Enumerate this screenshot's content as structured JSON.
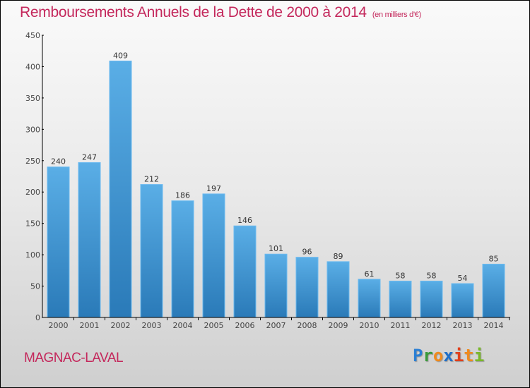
{
  "chart_data": {
    "type": "bar",
    "title": "Remboursements Annuels de la Dette de 2000 à 2014",
    "subtitle": "(en milliers d'€)",
    "xlabel": "",
    "ylabel": "",
    "categories": [
      "2000",
      "2001",
      "2002",
      "2003",
      "2004",
      "2005",
      "2006",
      "2007",
      "2008",
      "2009",
      "2010",
      "2011",
      "2012",
      "2013",
      "2014"
    ],
    "values": [
      240,
      247,
      409,
      212,
      186,
      197,
      146,
      101,
      96,
      89,
      61,
      58,
      58,
      54,
      85
    ],
    "ylim": [
      0,
      450
    ],
    "yticks": [
      0,
      50,
      100,
      150,
      200,
      250,
      300,
      350,
      400,
      450
    ],
    "grid": false,
    "legend": "none",
    "bar_color_top": "#5aaee6",
    "bar_color_bottom": "#2a7ab8"
  },
  "footer": {
    "city": "MAGNAC-LAVAL",
    "logo": [
      {
        "ch": "P",
        "color": "#2a7fd4"
      },
      {
        "ch": "r",
        "color": "#3a9a3a"
      },
      {
        "ch": "o",
        "color": "#f08a1c"
      },
      {
        "ch": "x",
        "color": "#1f6fc8"
      },
      {
        "ch": "i",
        "color": "#e0401c"
      },
      {
        "ch": "t",
        "color": "#f08a1c"
      },
      {
        "ch": "i",
        "color": "#7ab82a"
      }
    ]
  }
}
